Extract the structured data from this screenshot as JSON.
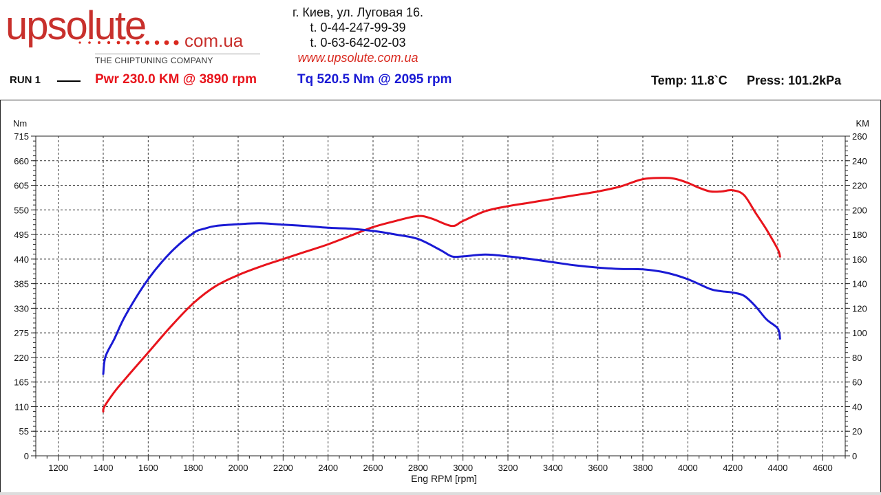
{
  "header": {
    "logo_main": "upsolute",
    "logo_domain": "com.ua",
    "logo_tagline": "THE CHIPTUNING COMPANY",
    "address": "г. Киев, ул. Луговая 16.",
    "phone1": "t. 0-44-247-99-39",
    "phone2": "t. 0-63-642-02-03",
    "website": "www.upsolute.com.ua"
  },
  "run": {
    "label": "RUN 1",
    "power_summary": "Pwr  230.0 KM @ 3890 rpm",
    "torque_summary": "Tq 520.5 Nm @ 2095 rpm",
    "temp": "Temp: 11.8`C",
    "press": "Press: 101.2kPa"
  },
  "colors": {
    "power": "#e8141c",
    "torque": "#1a1ad4",
    "logo": "#c8302c"
  },
  "chart_data": {
    "type": "line",
    "title": "",
    "xlabel": "Eng RPM [rpm]",
    "ylabel_left": "Nm",
    "ylabel_right": "KM",
    "xlim": [
      1100,
      4700
    ],
    "ylim_left": [
      0,
      715
    ],
    "ylim_right": [
      0,
      260
    ],
    "x_ticks": [
      "1200",
      "1400",
      "1600",
      "1800",
      "2000",
      "2200",
      "2400",
      "2600",
      "2800",
      "3000",
      "3200",
      "3400",
      "3600",
      "3800",
      "4000",
      "4200",
      "4400",
      "4600"
    ],
    "y_ticks_left": [
      "0",
      "55",
      "110",
      "165",
      "220",
      "275",
      "330",
      "385",
      "440",
      "495",
      "550",
      "605",
      "660",
      "715"
    ],
    "y_ticks_right": [
      "0",
      "20",
      "40",
      "60",
      "80",
      "100",
      "120",
      "140",
      "160",
      "180",
      "200",
      "220",
      "240",
      "260"
    ],
    "grid": true,
    "series": [
      {
        "name": "Pwr",
        "axis": "right",
        "color": "#e8141c",
        "x": [
          1400,
          1405,
          1450,
          1500,
          1600,
          1700,
          1800,
          1900,
          2000,
          2100,
          2200,
          2300,
          2400,
          2500,
          2600,
          2700,
          2800,
          2860,
          2950,
          3000,
          3100,
          3200,
          3300,
          3400,
          3500,
          3600,
          3700,
          3800,
          3900,
          3950,
          4000,
          4050,
          4100,
          4150,
          4200,
          4250,
          4300,
          4350,
          4400,
          4410
        ],
        "values": [
          36,
          40,
          52,
          63,
          84,
          105,
          124,
          138,
          147,
          154,
          160,
          166,
          172,
          179,
          186,
          191,
          195,
          193,
          187,
          191,
          199,
          203,
          206,
          209,
          212,
          215,
          219,
          225,
          226,
          225,
          222,
          218,
          215,
          215,
          216,
          212,
          198,
          184,
          168,
          162
        ]
      },
      {
        "name": "Tq",
        "axis": "left",
        "color": "#1a1ad4",
        "x": [
          1400,
          1410,
          1450,
          1500,
          1600,
          1700,
          1800,
          1850,
          1900,
          2000,
          2095,
          2200,
          2300,
          2400,
          2500,
          2600,
          2700,
          2800,
          2900,
          2950,
          3000,
          3100,
          3200,
          3300,
          3400,
          3500,
          3600,
          3700,
          3800,
          3900,
          4000,
          4100,
          4150,
          4200,
          4250,
          4300,
          4350,
          4400,
          4410
        ],
        "values": [
          183,
          222,
          262,
          315,
          395,
          455,
          498,
          508,
          514,
          518,
          520,
          517,
          514,
          510,
          508,
          503,
          495,
          485,
          460,
          446,
          446,
          450,
          446,
          440,
          433,
          426,
          421,
          418,
          417,
          410,
          395,
          373,
          368,
          365,
          358,
          335,
          305,
          285,
          262
        ]
      }
    ]
  }
}
